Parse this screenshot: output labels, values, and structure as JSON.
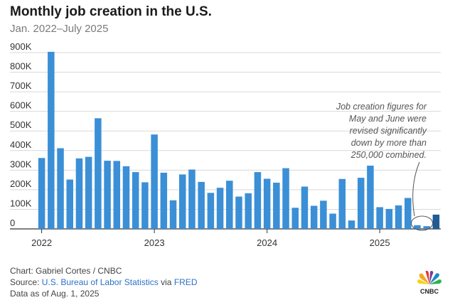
{
  "title": "Monthly job creation in the U.S.",
  "subtitle": "Jan. 2022–July 2025",
  "chart_data": {
    "type": "bar",
    "y_ticks": [
      "0",
      "100K",
      "200K",
      "300K",
      "400K",
      "500K",
      "600K",
      "700K",
      "800K",
      "900K"
    ],
    "x_tick_labels": [
      "2022",
      "2023",
      "2024",
      "2025"
    ],
    "ylim": [
      0,
      900000
    ],
    "grid": true,
    "bar_color": "#3b8fd6",
    "highlight_color": "#1f5b97",
    "categories": [
      "2022-01",
      "2022-02",
      "2022-03",
      "2022-04",
      "2022-05",
      "2022-06",
      "2022-07",
      "2022-08",
      "2022-09",
      "2022-10",
      "2022-11",
      "2022-12",
      "2023-01",
      "2023-02",
      "2023-03",
      "2023-04",
      "2023-05",
      "2023-06",
      "2023-07",
      "2023-08",
      "2023-09",
      "2023-10",
      "2023-11",
      "2023-12",
      "2024-01",
      "2024-02",
      "2024-03",
      "2024-04",
      "2024-05",
      "2024-06",
      "2024-07",
      "2024-08",
      "2024-09",
      "2024-10",
      "2024-11",
      "2024-12",
      "2025-01",
      "2025-02",
      "2025-03",
      "2025-04",
      "2025-05",
      "2025-06",
      "2025-07"
    ],
    "values": [
      362000,
      904000,
      412000,
      252000,
      360000,
      368000,
      565000,
      348000,
      347000,
      320000,
      290000,
      238000,
      482000,
      287000,
      146000,
      278000,
      303000,
      240000,
      184000,
      210000,
      246000,
      165000,
      182000,
      290000,
      256000,
      236000,
      310000,
      108000,
      216000,
      118000,
      144000,
      78000,
      255000,
      43000,
      261000,
      323000,
      111000,
      102000,
      120000,
      158000,
      19000,
      14000,
      73000
    ],
    "highlighted_index": 42,
    "annotation": "Job creation figures for May and June were revised significantly down by more than 250,000 combined."
  },
  "footer": {
    "credit": "Chart: Gabriel Cortes / CNBC",
    "source_prefix": "Source: ",
    "source_link": "U.S. Bureau of Labor Statistics",
    "source_mid": " via ",
    "source_link2": "FRED",
    "data_as_of": "Data as of Aug. 1, 2025"
  },
  "logo": {
    "name": "cnbc-peacock-icon",
    "text": "CNBC"
  }
}
